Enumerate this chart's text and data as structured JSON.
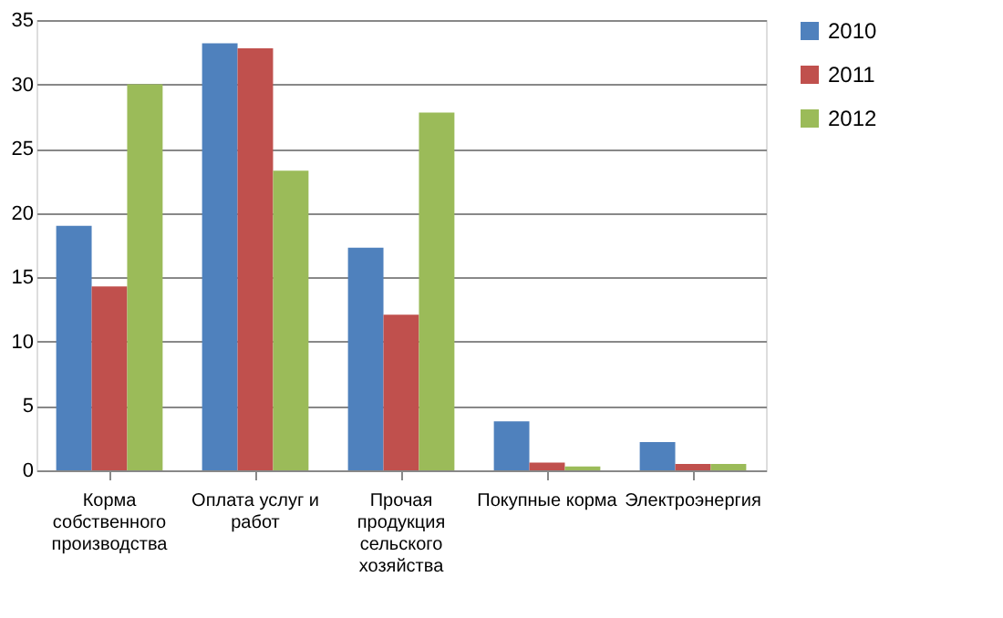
{
  "chart_data": {
    "type": "bar",
    "categories": [
      "Корма\nсобственного\nпроизводства",
      "Оплата услуг и\nработ",
      "Прочая\nпродукция\nсельского\nхозяйства",
      "Покупные корма",
      "Электроэнергия"
    ],
    "series": [
      {
        "name": "2010",
        "color": "#4f81bd",
        "values": [
          19.0,
          33.2,
          17.3,
          3.8,
          2.2
        ]
      },
      {
        "name": "2011",
        "color": "#c0504d",
        "values": [
          14.3,
          32.8,
          12.1,
          0.6,
          0.5
        ]
      },
      {
        "name": "2012",
        "color": "#9bbb59",
        "values": [
          30.0,
          23.3,
          27.8,
          0.3,
          0.5
        ]
      }
    ],
    "ylim": [
      0,
      35
    ],
    "yticks": [
      0,
      5,
      10,
      15,
      20,
      25,
      30,
      35
    ],
    "grid": "y",
    "legend": "right"
  }
}
